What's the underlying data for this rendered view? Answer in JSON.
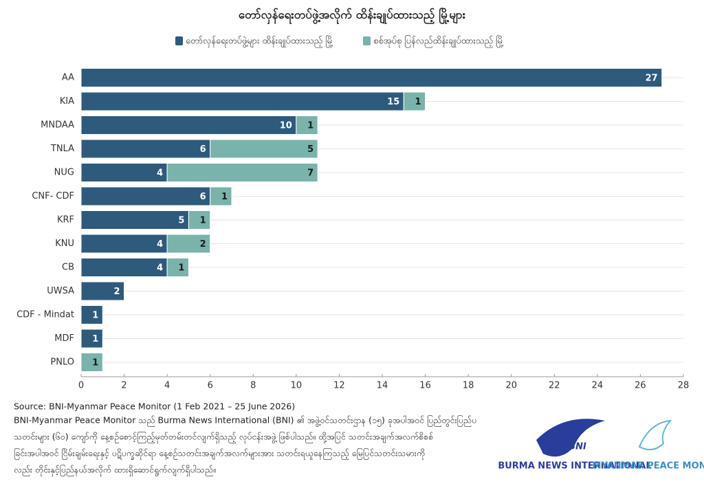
{
  "chart_data": {
    "type": "stacked-barh",
    "title": "တော်လှန်ရေးတပ်ဖွဲ့အလိုက် ထိန်းချုပ်ထားသည့် မြို့များ",
    "categories": [
      "AA",
      "KIA",
      "MNDAA",
      "TNLA",
      "NUG",
      "CNF- CDF",
      "KRF",
      "KNU",
      "CB",
      "UWSA",
      "CDF - Mindat",
      "MDF",
      "PNLO"
    ],
    "series": [
      {
        "name": "တော်လှန်ရေးတပ်ဖွဲ့များ ထိန်းချုပ်ထားသည့် မြို့",
        "color": "#2e5a7c",
        "values": [
          27,
          15,
          10,
          6,
          4,
          6,
          5,
          4,
          4,
          2,
          1,
          1,
          null
        ]
      },
      {
        "name": "စစ်အုပ်စု ပြန်လည်ထိန်းချုပ်ထားသည့် မြို့",
        "color": "#7ab3ab",
        "values": [
          null,
          1,
          1,
          5,
          7,
          1,
          1,
          2,
          1,
          null,
          null,
          null,
          1
        ]
      }
    ],
    "xlim": [
      0,
      28
    ],
    "xticks": [
      0,
      2,
      4,
      6,
      8,
      10,
      12,
      14,
      16,
      18,
      20,
      22,
      24,
      26,
      28
    ],
    "source": "Source: BNI-Myanmar Peace Monitor (1 Feb 2021 – 25 June 2026)",
    "description": [
      "BNI-Myanmar Peace Monitor သည် Burma News International (BNI) ၏ အဖွဲ့ဝင်သတင်းဌာန (၁၅) ခုအပါအဝင် ပြည်တွင်းပြည်ပ",
      "သတင်းများ (၆၀) ကျော်ကို နေ့စဉ်စောင့်ကြည့်မှတ်တမ်းတင်လျက်ရှိသည့် လုပ်ငန်းအဖွဲ့ ဖြစ်ပါသည်။ ထို့အပြင် သတင်းအချက်အလက်စိစစ်",
      "ခြင်းအပါအဝင် ငြိမ်းချမ်းရေးနှင့် ပဋိပက္ခဆိုင်ရာ နေ့စဉ်သတင်းအချက်အလက်များအား သတင်းရယူနေကြသည့် မြေပြင်သတင်းသမားကို",
      "လည်း တိုင်းနှင့်ပြည်နယ်အလိုက် ထားရှိဆောင်ရွက်လျက်ရှိပါသည်။"
    ],
    "logos": [
      {
        "mark": "BNI",
        "name": "BURMA NEWS INTERNATIONAL"
      },
      {
        "name": "MYANMAR PEACE MONITOR"
      }
    ]
  }
}
